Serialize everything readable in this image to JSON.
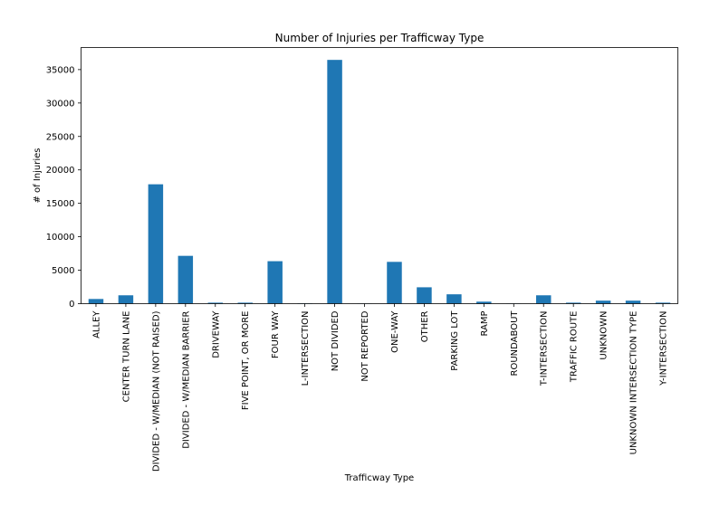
{
  "chart_data": {
    "type": "bar",
    "title": "Number of Injuries per Trafficway Type",
    "xlabel": "Trafficway Type",
    "ylabel": "# of Injuries",
    "categories": [
      "ALLEY",
      "CENTER TURN LANE",
      "DIVIDED - W/MEDIAN (NOT RAISED)",
      "DIVIDED - W/MEDIAN BARRIER",
      "DRIVEWAY",
      "FIVE POINT, OR MORE",
      "FOUR WAY",
      "L-INTERSECTION",
      "NOT DIVIDED",
      "NOT REPORTED",
      "ONE-WAY",
      "OTHER",
      "PARKING LOT",
      "RAMP",
      "ROUNDABOUT",
      "T-INTERSECTION",
      "TRAFFIC ROUTE",
      "UNKNOWN",
      "UNKNOWN INTERSECTION TYPE",
      "Y-INTERSECTION"
    ],
    "values": [
      700,
      1250,
      17850,
      7150,
      150,
      150,
      6350,
      50,
      36450,
      20,
      6250,
      2450,
      1400,
      300,
      20,
      1250,
      150,
      450,
      450,
      150
    ],
    "yticks": [
      0,
      5000,
      10000,
      15000,
      20000,
      25000,
      30000,
      35000
    ],
    "ytick_labels": [
      "0",
      "5000",
      "10000",
      "15000",
      "20000",
      "25000",
      "30000",
      "35000"
    ],
    "ylim": [
      0,
      38300
    ],
    "bar_color": "#1f77b4",
    "grid": false,
    "legend": false
  }
}
